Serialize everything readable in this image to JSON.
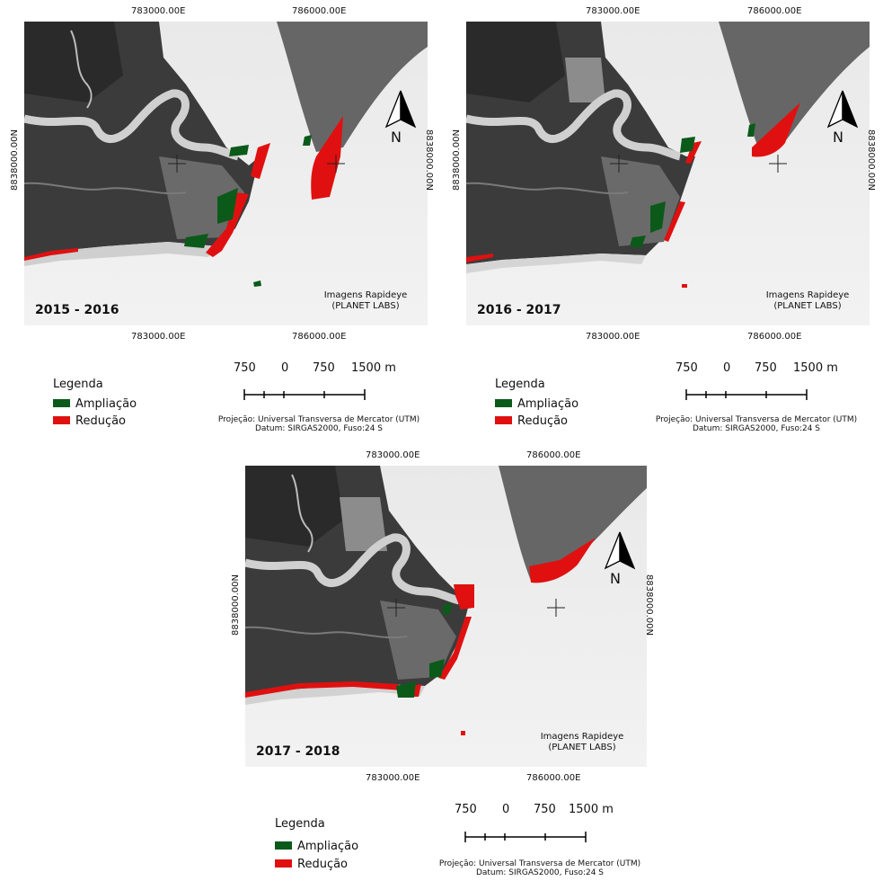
{
  "panels": [
    {
      "period": "2015 - 2016",
      "top_labels": [
        "783000.00E",
        "786000.00E"
      ],
      "bottom_labels": [
        "783000.00E",
        "786000.00E"
      ],
      "left_label": "8838000.00N",
      "right_label": "8838000.00N",
      "credit_line1": "Imagens Rapideye",
      "credit_line2": "(PLANET LABS)",
      "north": "N"
    },
    {
      "period": "2016 - 2017",
      "top_labels": [
        "783000.00E",
        "786000.00E"
      ],
      "bottom_labels": [
        "783000.00E",
        "786000.00E"
      ],
      "left_label": "8838000.00N",
      "right_label": "8838000.00N",
      "credit_line1": "Imagens Rapideye",
      "credit_line2": "(PLANET LABS)",
      "north": "N"
    },
    {
      "period": "2017 - 2018",
      "top_labels": [
        "783000.00E",
        "786000.00E"
      ],
      "bottom_labels": [
        "783000.00E",
        "786000.00E"
      ],
      "left_label": "8838000.00N",
      "right_label": "8838000.00N",
      "credit_line1": "Imagens Rapideye",
      "credit_line2": "(PLANET LABS)",
      "north": "N"
    }
  ],
  "legend": {
    "title": "Legenda",
    "items": [
      {
        "label": "Ampliação",
        "color": "#0b5a1a"
      },
      {
        "label": "Redução",
        "color": "#e01010"
      }
    ]
  },
  "scalebar": {
    "labels": [
      "750",
      "0",
      "750",
      "1500 m"
    ]
  },
  "projection": {
    "line1": "Projeção: Universal Transversa de Mercator (UTM)",
    "line2": "Datum: SIRGAS2000, Fuso:24 S"
  },
  "colors": {
    "land": "#3a3a3a",
    "sea": "#efefef",
    "sandbar": "#7c7c7c",
    "river": "#d2d2d2",
    "gain": "#0b5a1a",
    "loss": "#e01010"
  }
}
